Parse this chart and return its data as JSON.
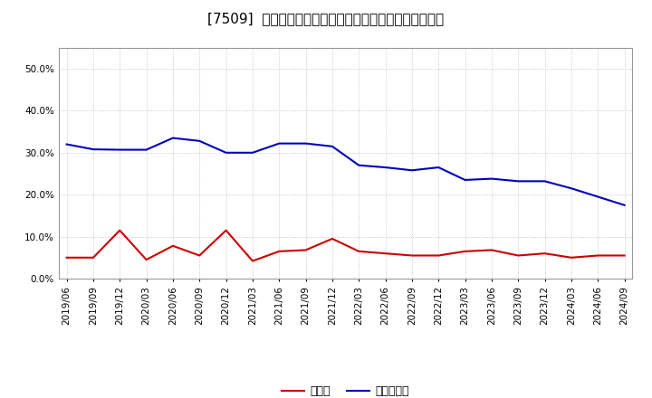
{
  "title": "[7509]  現頲金、有利子負債の総資産に対する比率の推移",
  "x_labels": [
    "2019/06",
    "2019/09",
    "2019/12",
    "2020/03",
    "2020/06",
    "2020/09",
    "2020/12",
    "2021/03",
    "2021/06",
    "2021/09",
    "2021/12",
    "2022/03",
    "2022/06",
    "2022/09",
    "2022/12",
    "2023/03",
    "2023/06",
    "2023/09",
    "2023/12",
    "2024/03",
    "2024/06",
    "2024/09"
  ],
  "cash": [
    0.05,
    0.05,
    0.115,
    0.045,
    0.078,
    0.055,
    0.115,
    0.042,
    0.065,
    0.068,
    0.095,
    0.065,
    0.06,
    0.055,
    0.055,
    0.065,
    0.068,
    0.055,
    0.06,
    0.05,
    0.055,
    0.055
  ],
  "debt": [
    0.32,
    0.308,
    0.307,
    0.307,
    0.335,
    0.328,
    0.3,
    0.3,
    0.322,
    0.322,
    0.315,
    0.27,
    0.265,
    0.258,
    0.265,
    0.235,
    0.238,
    0.232,
    0.232,
    0.215,
    0.195,
    0.175
  ],
  "cash_color": "#cc0000",
  "debt_color": "#0000bb",
  "bg_color": "#ffffff",
  "plot_bg_color": "#ffffff",
  "grid_color": "#bbbbbb",
  "ylim": [
    0.0,
    0.55
  ],
  "yticks": [
    0.0,
    0.1,
    0.2,
    0.3,
    0.4,
    0.5
  ],
  "legend_cash": "現頲金",
  "legend_debt": "有利子負債",
  "title_fontsize": 11,
  "axis_fontsize": 7.5,
  "legend_fontsize": 9
}
